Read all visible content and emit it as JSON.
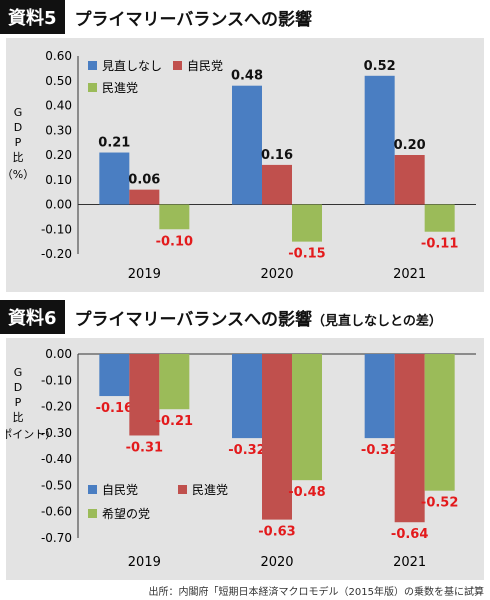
{
  "colors": {
    "blue": "#4a7ec2",
    "red": "#c0504d",
    "green": "#9bbb59",
    "neg_label": "#e31a1c"
  },
  "chart5": {
    "badge": "資料5",
    "title": "プライマリーバランスへの影響",
    "ylabel": [
      "G",
      "D",
      "P",
      "比",
      "（%）"
    ],
    "chart_data": {
      "type": "bar",
      "categories": [
        "2019",
        "2020",
        "2021"
      ],
      "series": [
        {
          "name": "見直しなし",
          "values": [
            0.21,
            0.48,
            0.52
          ],
          "labels": [
            "0.21",
            "0.48",
            "0.52"
          ]
        },
        {
          "name": "自民党",
          "values": [
            0.06,
            0.16,
            0.2
          ],
          "labels": [
            "0.06",
            "0.16",
            "0.20"
          ]
        },
        {
          "name": "民進党",
          "values": [
            -0.1,
            -0.15,
            -0.11
          ],
          "labels": [
            "-0.10",
            "-0.15",
            "-0.11"
          ]
        }
      ],
      "ylim": [
        -0.2,
        0.6
      ],
      "yticks": [
        "0.60",
        "0.50",
        "0.40",
        "0.30",
        "0.20",
        "0.10",
        "0.00",
        "-0.10",
        "-0.20"
      ],
      "legend": "top-left",
      "grid": false
    }
  },
  "chart6": {
    "badge": "資料6",
    "title": "プライマリーバランスへの影響",
    "subtitle": "（見直しなしとの差）",
    "ylabel": [
      "G",
      "D",
      "P",
      "比",
      "（%ポイント）"
    ],
    "chart_data": {
      "type": "bar",
      "categories": [
        "2019",
        "2020",
        "2021"
      ],
      "series": [
        {
          "name": "自民党",
          "values": [
            -0.16,
            -0.32,
            -0.32
          ],
          "labels": [
            "-0.16",
            "-0.32",
            "-0.32"
          ]
        },
        {
          "name": "民進党",
          "values": [
            -0.31,
            -0.63,
            -0.64
          ],
          "labels": [
            "-0.31",
            "-0.63",
            "-0.64"
          ]
        },
        {
          "name": "希望の党",
          "values": [
            -0.21,
            -0.48,
            -0.52
          ],
          "labels": [
            "-0.21",
            "-0.48",
            "-0.52"
          ]
        }
      ],
      "ylim": [
        -0.7,
        0.0
      ],
      "yticks": [
        "0.00",
        "-0.10",
        "-0.20",
        "-0.30",
        "-0.40",
        "-0.50",
        "-0.60",
        "-0.70"
      ],
      "legend": "bottom-left",
      "grid": false
    }
  },
  "source": "出所：内閣府「短期日本経済マクロモデル（2015年版）の乗数を基に試算"
}
